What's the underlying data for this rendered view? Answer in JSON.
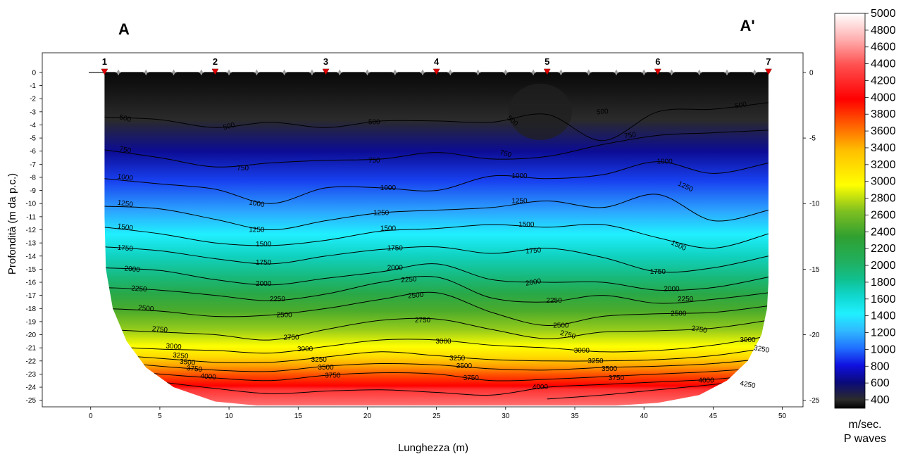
{
  "chart_data": {
    "type": "heatmap",
    "title": "",
    "section_start_label": "A",
    "section_end_label": "A'",
    "xlabel": "Lunghezza (m)",
    "ylabel": "Profondità (m da p.c.)",
    "xlim": [
      -3.5,
      51.5
    ],
    "ylim": [
      -25.5,
      1.5
    ],
    "x_ticks": [
      0,
      5,
      10,
      15,
      20,
      25,
      30,
      35,
      40,
      45,
      50
    ],
    "y_ticks_left": [
      0,
      -1,
      -2,
      -3,
      -4,
      -5,
      -6,
      -7,
      -8,
      -9,
      -10,
      -11,
      -12,
      -13,
      -14,
      -15,
      -16,
      -17,
      -18,
      -19,
      -20,
      -21,
      -22,
      -23,
      -24,
      -25
    ],
    "y_ticks_right": [
      0,
      -5,
      -10,
      -15,
      -20,
      -25
    ],
    "geophones": [
      {
        "label": "1",
        "x": 1
      },
      {
        "label": "2",
        "x": 9
      },
      {
        "label": "3",
        "x": 17
      },
      {
        "label": "4",
        "x": 25
      },
      {
        "label": "5",
        "x": 33
      },
      {
        "label": "6",
        "x": 41
      },
      {
        "label": "7",
        "x": 49
      }
    ],
    "receivers_x": [
      2,
      4,
      6,
      8,
      10,
      12,
      14,
      16,
      18,
      20,
      22,
      24,
      26,
      28,
      30,
      32,
      34,
      36,
      38,
      40,
      42,
      44,
      46,
      48
    ],
    "contour_levels": [
      500,
      750,
      1000,
      1250,
      1500,
      1750,
      2000,
      2250,
      2500,
      2750,
      3000,
      3250,
      3500,
      3750,
      4000,
      4250
    ],
    "contours": [
      {
        "level": 500,
        "depth": [
          -3.4,
          -3.6,
          -4.2,
          -3.8,
          -4.2,
          -3.7,
          -3.7,
          -3.8,
          -3.2,
          -5.2,
          -3.0,
          -2.8,
          -2.3
        ]
      },
      {
        "level": 750,
        "depth": [
          -5.9,
          -6.5,
          -7.2,
          -6.9,
          -6.7,
          -6.6,
          -6.1,
          -6.6,
          -6.4,
          -5.5,
          -4.8,
          -4.6,
          -4.4
        ]
      },
      {
        "level": 1000,
        "depth": [
          -8.1,
          -8.5,
          -8.9,
          -10.0,
          -8.8,
          -8.8,
          -9.0,
          -7.9,
          -8.1,
          -7.8,
          -6.8,
          -7.7,
          -6.9
        ]
      },
      {
        "level": 1250,
        "depth": [
          -10.2,
          -10.4,
          -11.2,
          -12.0,
          -11.3,
          -10.7,
          -10.5,
          -10.3,
          -9.8,
          -10.3,
          -9.3,
          -11.3,
          -10.5
        ]
      },
      {
        "level": 1500,
        "depth": [
          -11.8,
          -12.3,
          -13.0,
          -13.2,
          -12.8,
          -12.1,
          -11.9,
          -11.6,
          -11.8,
          -11.6,
          -12.6,
          -13.4,
          -12.3
        ]
      },
      {
        "level": 1750,
        "depth": [
          -13.3,
          -13.6,
          -14.2,
          -14.6,
          -14.0,
          -13.5,
          -13.3,
          -13.8,
          -13.4,
          -14.1,
          -15.2,
          -14.9,
          -14.0
        ]
      },
      {
        "level": 2000,
        "depth": [
          -14.9,
          -15.1,
          -15.8,
          -16.2,
          -15.7,
          -15.2,
          -14.6,
          -15.8,
          -16.0,
          -16.0,
          -16.6,
          -16.4,
          -15.6
        ]
      },
      {
        "level": 2250,
        "depth": [
          -16.4,
          -16.6,
          -17.0,
          -17.4,
          -16.9,
          -16.0,
          -15.6,
          -17.2,
          -17.5,
          -17.0,
          -17.6,
          -17.3,
          -16.8
        ]
      },
      {
        "level": 2500,
        "depth": [
          -18.0,
          -18.2,
          -18.6,
          -18.5,
          -18.0,
          -17.3,
          -16.8,
          -18.3,
          -19.3,
          -18.6,
          -18.4,
          -18.3,
          -17.8
        ]
      },
      {
        "level": 2750,
        "depth": [
          -19.6,
          -19.8,
          -20.0,
          -20.4,
          -19.6,
          -18.9,
          -18.8,
          -19.6,
          -20.3,
          -19.8,
          -19.7,
          -19.5,
          -18.9
        ]
      },
      {
        "level": 3000,
        "depth": [
          -20.9,
          -21.1,
          -21.2,
          -21.4,
          -20.9,
          -20.4,
          -20.4,
          -20.8,
          -21.0,
          -21.3,
          -21.2,
          -20.8,
          -20.1
        ]
      },
      {
        "level": 3250,
        "depth": [
          -21.5,
          -21.8,
          -22.1,
          -22.1,
          -21.7,
          -21.3,
          -21.6,
          -21.9,
          -22.0,
          -22.0,
          -21.9,
          -21.6,
          -21.0
        ]
      },
      {
        "level": 3500,
        "depth": [
          -22.0,
          -22.4,
          -22.7,
          -22.8,
          -22.4,
          -22.2,
          -22.3,
          -22.6,
          -22.7,
          -22.5,
          -22.4,
          -22.2,
          -21.8
        ]
      },
      {
        "level": 3750,
        "depth": [
          -22.6,
          -23.0,
          -23.3,
          -23.5,
          -23.1,
          -22.9,
          -23.0,
          -23.5,
          -23.4,
          -23.2,
          -23.0,
          -22.8,
          -22.5
        ]
      },
      {
        "level": 4000,
        "depth": [
          -23.1,
          -23.6,
          -24.1,
          -24.5,
          -24.3,
          -24.2,
          -24.4,
          -24.6,
          -24.0,
          -23.8,
          -23.6,
          -23.4,
          -23.0
        ]
      },
      {
        "level": 4250,
        "depth": [
          null,
          null,
          null,
          null,
          null,
          null,
          null,
          null,
          -24.9,
          -24.6,
          -24.2,
          -23.8,
          -23.3
        ]
      }
    ],
    "contour_x": [
      1,
      5,
      9,
      13,
      17,
      21,
      25,
      29,
      33,
      37,
      41,
      45,
      49
    ],
    "contour_labels": [
      {
        "text": "500",
        "x": 2.5,
        "y": -3.5,
        "angle": 15
      },
      {
        "text": "500",
        "x": 10.0,
        "y": -4.1,
        "angle": -15
      },
      {
        "text": "500",
        "x": 20.5,
        "y": -3.8,
        "angle": 0
      },
      {
        "text": "500",
        "x": 30.5,
        "y": -3.7,
        "angle": 40
      },
      {
        "text": "500",
        "x": 37.0,
        "y": -3.0,
        "angle": -5
      },
      {
        "text": "500",
        "x": 47.0,
        "y": -2.5,
        "angle": -10
      },
      {
        "text": "750",
        "x": 2.5,
        "y": -5.9,
        "angle": 10
      },
      {
        "text": "750",
        "x": 11.0,
        "y": -7.3,
        "angle": 0
      },
      {
        "text": "750",
        "x": 20.5,
        "y": -6.7,
        "angle": 0
      },
      {
        "text": "750",
        "x": 30.0,
        "y": -6.2,
        "angle": 15
      },
      {
        "text": "750",
        "x": 39.0,
        "y": -4.8,
        "angle": -8
      },
      {
        "text": "1000",
        "x": 2.5,
        "y": -8.0,
        "angle": 8
      },
      {
        "text": "1000",
        "x": 12.0,
        "y": -10.0,
        "angle": 10
      },
      {
        "text": "1000",
        "x": 21.5,
        "y": -8.8,
        "angle": 0
      },
      {
        "text": "1000",
        "x": 31.0,
        "y": -7.9,
        "angle": 0
      },
      {
        "text": "1000",
        "x": 41.5,
        "y": -6.8,
        "angle": 0
      },
      {
        "text": "1250",
        "x": 2.5,
        "y": -10.0,
        "angle": 8
      },
      {
        "text": "1250",
        "x": 12.0,
        "y": -12.0,
        "angle": 0
      },
      {
        "text": "1250",
        "x": 21.0,
        "y": -10.7,
        "angle": 0
      },
      {
        "text": "1250",
        "x": 31.0,
        "y": -9.8,
        "angle": 0
      },
      {
        "text": "1250",
        "x": 43.0,
        "y": -8.7,
        "angle": 25
      },
      {
        "text": "1500",
        "x": 2.5,
        "y": -11.8,
        "angle": 8
      },
      {
        "text": "1500",
        "x": 12.5,
        "y": -13.1,
        "angle": 0
      },
      {
        "text": "1500",
        "x": 21.5,
        "y": -11.9,
        "angle": 0
      },
      {
        "text": "1500",
        "x": 31.5,
        "y": -11.6,
        "angle": 0
      },
      {
        "text": "1500",
        "x": 42.5,
        "y": -13.2,
        "angle": 25
      },
      {
        "text": "1750",
        "x": 2.5,
        "y": -13.4,
        "angle": 5
      },
      {
        "text": "1750",
        "x": 12.5,
        "y": -14.5,
        "angle": 0
      },
      {
        "text": "1750",
        "x": 22.0,
        "y": -13.4,
        "angle": 0
      },
      {
        "text": "1750",
        "x": 32.0,
        "y": -13.6,
        "angle": -5
      },
      {
        "text": "1750",
        "x": 41.0,
        "y": -15.2,
        "angle": 0
      },
      {
        "text": "2000",
        "x": 3.0,
        "y": -15.0,
        "angle": 5
      },
      {
        "text": "2000",
        "x": 12.5,
        "y": -16.1,
        "angle": 0
      },
      {
        "text": "2000",
        "x": 22.0,
        "y": -14.9,
        "angle": 0
      },
      {
        "text": "2000",
        "x": 32.0,
        "y": -16.0,
        "angle": -10
      },
      {
        "text": "2000",
        "x": 42.0,
        "y": -16.5,
        "angle": 0
      },
      {
        "text": "2250",
        "x": 3.5,
        "y": -16.5,
        "angle": 5
      },
      {
        "text": "2250",
        "x": 13.5,
        "y": -17.3,
        "angle": 0
      },
      {
        "text": "2250",
        "x": 23.0,
        "y": -15.8,
        "angle": -5
      },
      {
        "text": "2250",
        "x": 33.5,
        "y": -17.4,
        "angle": 0
      },
      {
        "text": "2250",
        "x": 43.0,
        "y": -17.3,
        "angle": 0
      },
      {
        "text": "2500",
        "x": 4.0,
        "y": -18.0,
        "angle": 5
      },
      {
        "text": "2500",
        "x": 14.0,
        "y": -18.5,
        "angle": 0
      },
      {
        "text": "2500",
        "x": 23.5,
        "y": -17.0,
        "angle": -5
      },
      {
        "text": "2500",
        "x": 34.0,
        "y": -19.3,
        "angle": 0
      },
      {
        "text": "2500",
        "x": 42.5,
        "y": -18.4,
        "angle": 0
      },
      {
        "text": "2750",
        "x": 5.0,
        "y": -19.6,
        "angle": 5
      },
      {
        "text": "2750",
        "x": 14.5,
        "y": -20.2,
        "angle": 0
      },
      {
        "text": "2750",
        "x": 24.0,
        "y": -18.9,
        "angle": 0
      },
      {
        "text": "2750",
        "x": 34.5,
        "y": -20.0,
        "angle": 15
      },
      {
        "text": "2750",
        "x": 44.0,
        "y": -19.6,
        "angle": 10
      },
      {
        "text": "3000",
        "x": 6.0,
        "y": -20.9,
        "angle": 5
      },
      {
        "text": "3000",
        "x": 15.5,
        "y": -21.1,
        "angle": 0
      },
      {
        "text": "3000",
        "x": 25.5,
        "y": -20.5,
        "angle": 0
      },
      {
        "text": "3000",
        "x": 35.5,
        "y": -21.2,
        "angle": 0
      },
      {
        "text": "3000",
        "x": 47.5,
        "y": -20.4,
        "angle": 0
      },
      {
        "text": "3250",
        "x": 6.5,
        "y": -21.6,
        "angle": 5
      },
      {
        "text": "3250",
        "x": 16.5,
        "y": -21.9,
        "angle": 0
      },
      {
        "text": "3250",
        "x": 26.5,
        "y": -21.8,
        "angle": 0
      },
      {
        "text": "3250",
        "x": 36.5,
        "y": -22.0,
        "angle": 0
      },
      {
        "text": "3250",
        "x": 48.5,
        "y": -21.1,
        "angle": 10
      },
      {
        "text": "3500",
        "x": 7.0,
        "y": -22.1,
        "angle": 5
      },
      {
        "text": "3500",
        "x": 17.0,
        "y": -22.5,
        "angle": 0
      },
      {
        "text": "3500",
        "x": 27.0,
        "y": -22.4,
        "angle": 0
      },
      {
        "text": "3500",
        "x": 37.5,
        "y": -22.6,
        "angle": 0
      },
      {
        "text": "3750",
        "x": 7.5,
        "y": -22.6,
        "angle": 5
      },
      {
        "text": "3750",
        "x": 17.5,
        "y": -23.1,
        "angle": 0
      },
      {
        "text": "3750",
        "x": 27.5,
        "y": -23.3,
        "angle": 0
      },
      {
        "text": "3750",
        "x": 38.0,
        "y": -23.3,
        "angle": 0
      },
      {
        "text": "4000",
        "x": 8.5,
        "y": -23.2,
        "angle": 5
      },
      {
        "text": "4000",
        "x": 32.5,
        "y": -24.0,
        "angle": 0
      },
      {
        "text": "4000",
        "x": 44.5,
        "y": -23.5,
        "angle": 0
      },
      {
        "text": "4250",
        "x": 47.5,
        "y": -23.8,
        "angle": 10
      }
    ],
    "colorbar": {
      "min": 400,
      "max": 5000,
      "ticks": [
        5000,
        4800,
        4600,
        4400,
        4200,
        4000,
        3800,
        3600,
        3400,
        3200,
        3000,
        2800,
        2600,
        2400,
        2200,
        2000,
        1800,
        1600,
        1400,
        1200,
        1000,
        800,
        600,
        400
      ],
      "unit_label": "m/sec.",
      "quantity_label": "P waves",
      "stops": [
        {
          "v": 400,
          "color": "#000000"
        },
        {
          "v": 500,
          "color": "#2b2b2b"
        },
        {
          "v": 700,
          "color": "#0a0a7a"
        },
        {
          "v": 900,
          "color": "#1010e0"
        },
        {
          "v": 1100,
          "color": "#2070ff"
        },
        {
          "v": 1300,
          "color": "#30b8ff"
        },
        {
          "v": 1500,
          "color": "#20f0ff"
        },
        {
          "v": 1700,
          "color": "#10d8d0"
        },
        {
          "v": 1900,
          "color": "#10c090"
        },
        {
          "v": 2100,
          "color": "#20b060"
        },
        {
          "v": 2400,
          "color": "#30a030"
        },
        {
          "v": 2700,
          "color": "#80c020"
        },
        {
          "v": 3000,
          "color": "#ffff00"
        },
        {
          "v": 3400,
          "color": "#ffc000"
        },
        {
          "v": 3700,
          "color": "#ff6000"
        },
        {
          "v": 4000,
          "color": "#ff0000"
        },
        {
          "v": 4400,
          "color": "#ff5050"
        },
        {
          "v": 4700,
          "color": "#ffb0b0"
        },
        {
          "v": 5000,
          "color": "#ffffff"
        }
      ]
    }
  }
}
